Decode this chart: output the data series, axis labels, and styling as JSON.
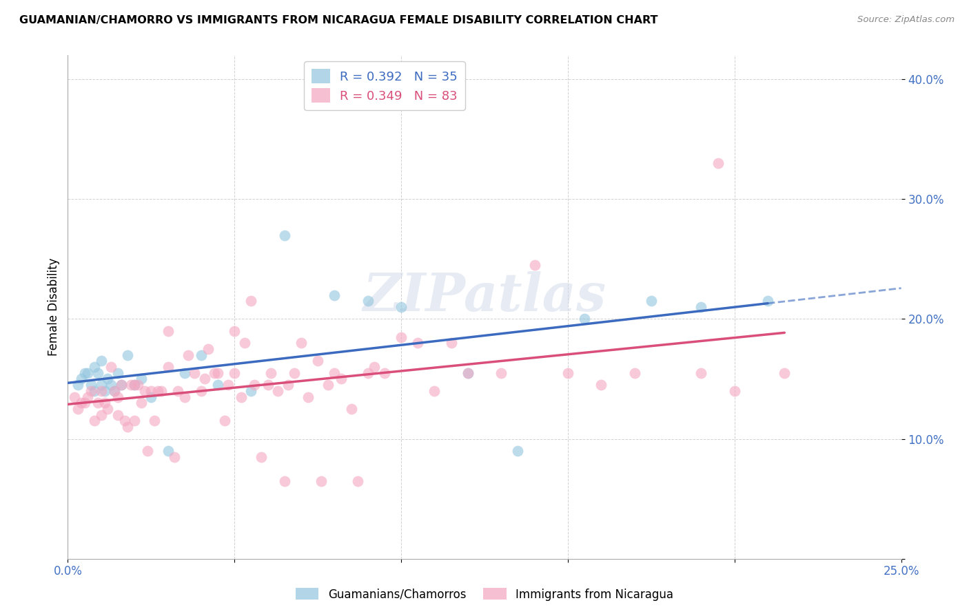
{
  "title": "GUAMANIAN/CHAMORRO VS IMMIGRANTS FROM NICARAGUA FEMALE DISABILITY CORRELATION CHART",
  "source": "Source: ZipAtlas.com",
  "ylabel": "Female Disability",
  "xlim": [
    0,
    0.25
  ],
  "ylim": [
    0,
    0.42
  ],
  "blue_R": 0.392,
  "blue_N": 35,
  "pink_R": 0.349,
  "pink_N": 83,
  "blue_color": "#92c5de",
  "pink_color": "#f4a6c0",
  "blue_line_color": "#3b6abf",
  "pink_line_color": "#d94f7a",
  "blue_label": "Guamanians/Chamorros",
  "pink_label": "Immigrants from Nicaragua",
  "watermark": "ZIPatlas",
  "blue_scatter_x": [
    0.003,
    0.004,
    0.005,
    0.006,
    0.007,
    0.008,
    0.008,
    0.009,
    0.01,
    0.01,
    0.011,
    0.012,
    0.013,
    0.014,
    0.015,
    0.016,
    0.018,
    0.02,
    0.022,
    0.025,
    0.03,
    0.035,
    0.04,
    0.045,
    0.055,
    0.065,
    0.08,
    0.09,
    0.1,
    0.12,
    0.135,
    0.155,
    0.175,
    0.19,
    0.21
  ],
  "blue_scatter_y": [
    0.145,
    0.15,
    0.155,
    0.155,
    0.145,
    0.14,
    0.16,
    0.155,
    0.145,
    0.165,
    0.14,
    0.15,
    0.145,
    0.14,
    0.155,
    0.145,
    0.17,
    0.145,
    0.15,
    0.135,
    0.09,
    0.155,
    0.17,
    0.145,
    0.14,
    0.27,
    0.22,
    0.215,
    0.21,
    0.155,
    0.09,
    0.2,
    0.215,
    0.21,
    0.215
  ],
  "pink_scatter_x": [
    0.002,
    0.003,
    0.004,
    0.005,
    0.006,
    0.007,
    0.008,
    0.009,
    0.01,
    0.01,
    0.011,
    0.012,
    0.013,
    0.014,
    0.015,
    0.015,
    0.016,
    0.017,
    0.018,
    0.019,
    0.02,
    0.02,
    0.021,
    0.022,
    0.023,
    0.024,
    0.025,
    0.026,
    0.027,
    0.028,
    0.03,
    0.03,
    0.032,
    0.033,
    0.035,
    0.036,
    0.038,
    0.04,
    0.041,
    0.042,
    0.044,
    0.045,
    0.047,
    0.048,
    0.05,
    0.05,
    0.052,
    0.053,
    0.055,
    0.056,
    0.058,
    0.06,
    0.061,
    0.063,
    0.065,
    0.066,
    0.068,
    0.07,
    0.072,
    0.075,
    0.076,
    0.078,
    0.08,
    0.082,
    0.085,
    0.087,
    0.09,
    0.092,
    0.095,
    0.1,
    0.105,
    0.11,
    0.115,
    0.12,
    0.13,
    0.14,
    0.15,
    0.16,
    0.17,
    0.19,
    0.2,
    0.215,
    0.195
  ],
  "pink_scatter_y": [
    0.135,
    0.125,
    0.13,
    0.13,
    0.135,
    0.14,
    0.115,
    0.13,
    0.14,
    0.12,
    0.13,
    0.125,
    0.16,
    0.14,
    0.12,
    0.135,
    0.145,
    0.115,
    0.11,
    0.145,
    0.115,
    0.145,
    0.145,
    0.13,
    0.14,
    0.09,
    0.14,
    0.115,
    0.14,
    0.14,
    0.16,
    0.19,
    0.085,
    0.14,
    0.135,
    0.17,
    0.155,
    0.14,
    0.15,
    0.175,
    0.155,
    0.155,
    0.115,
    0.145,
    0.155,
    0.19,
    0.135,
    0.18,
    0.215,
    0.145,
    0.085,
    0.145,
    0.155,
    0.14,
    0.065,
    0.145,
    0.155,
    0.18,
    0.135,
    0.165,
    0.065,
    0.145,
    0.155,
    0.15,
    0.125,
    0.065,
    0.155,
    0.16,
    0.155,
    0.185,
    0.18,
    0.14,
    0.18,
    0.155,
    0.155,
    0.245,
    0.155,
    0.145,
    0.155,
    0.155,
    0.14,
    0.155,
    0.33
  ]
}
